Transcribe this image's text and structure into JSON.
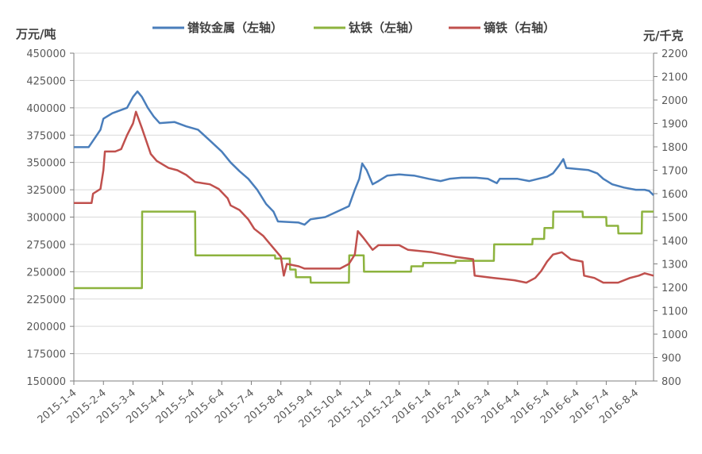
{
  "chart_data": {
    "type": "line",
    "left_unit": "万元/吨",
    "right_unit": "元/千克",
    "left_axis": {
      "min": 150000,
      "max": 450000,
      "step": 25000,
      "ticks": [
        "450000",
        "425000",
        "400000",
        "375000",
        "350000",
        "325000",
        "300000",
        "275000",
        "250000",
        "225000",
        "200000",
        "175000",
        "150000"
      ]
    },
    "right_axis": {
      "min": 800,
      "max": 2200,
      "step": 100,
      "ticks": [
        "2200",
        "2100",
        "2000",
        "1900",
        "1800",
        "1700",
        "1600",
        "1500",
        "1400",
        "1300",
        "1200",
        "1100",
        "1000",
        "900",
        "800"
      ]
    },
    "x_ticks": [
      "2015-1-4",
      "2015-2-4",
      "2015-3-4",
      "2015-4-4",
      "2015-5-4",
      "2015-6-4",
      "2015-7-4",
      "2015-8-4",
      "2015-9-4",
      "2015-10-4",
      "2015-11-4",
      "2015-12-4",
      "2016-1-4",
      "2016-2-4",
      "2016-3-4",
      "2016-4-4",
      "2016-5-4",
      "2016-6-4",
      "2016-7-4",
      "2016-8-4"
    ],
    "x_range": [
      0,
      19.6
    ],
    "grid": true,
    "legend_position": "top",
    "series": [
      {
        "name": "镨钕金属（左轴）",
        "axis": "left",
        "color": "#4a7ebb",
        "points": [
          [
            0,
            364000
          ],
          [
            0.5,
            364000
          ],
          [
            0.7,
            372000
          ],
          [
            0.9,
            380000
          ],
          [
            1.0,
            390000
          ],
          [
            1.3,
            395000
          ],
          [
            1.8,
            400000
          ],
          [
            2.0,
            410000
          ],
          [
            2.15,
            415000
          ],
          [
            2.3,
            410000
          ],
          [
            2.5,
            400000
          ],
          [
            2.7,
            392000
          ],
          [
            2.9,
            386000
          ],
          [
            3.4,
            387000
          ],
          [
            3.8,
            383000
          ],
          [
            4.2,
            380000
          ],
          [
            4.6,
            370000
          ],
          [
            5.0,
            360000
          ],
          [
            5.3,
            350000
          ],
          [
            5.6,
            342000
          ],
          [
            5.9,
            335000
          ],
          [
            6.2,
            325000
          ],
          [
            6.5,
            312000
          ],
          [
            6.75,
            305000
          ],
          [
            6.9,
            296000
          ],
          [
            7.6,
            295000
          ],
          [
            7.8,
            293000
          ],
          [
            8.0,
            298000
          ],
          [
            8.5,
            300000
          ],
          [
            8.9,
            305000
          ],
          [
            9.3,
            310000
          ],
          [
            9.5,
            325000
          ],
          [
            9.65,
            335000
          ],
          [
            9.75,
            349000
          ],
          [
            9.9,
            343000
          ],
          [
            10.1,
            330000
          ],
          [
            10.3,
            333000
          ],
          [
            10.6,
            338000
          ],
          [
            11.0,
            339000
          ],
          [
            11.5,
            338000
          ],
          [
            12.0,
            335000
          ],
          [
            12.4,
            333000
          ],
          [
            12.7,
            335000
          ],
          [
            13.1,
            336000
          ],
          [
            13.6,
            336000
          ],
          [
            14.0,
            335000
          ],
          [
            14.3,
            331000
          ],
          [
            14.4,
            335000
          ],
          [
            15.0,
            335000
          ],
          [
            15.4,
            333000
          ],
          [
            15.7,
            335000
          ],
          [
            16.0,
            337000
          ],
          [
            16.2,
            340000
          ],
          [
            16.4,
            347000
          ],
          [
            16.55,
            353000
          ],
          [
            16.65,
            345000
          ],
          [
            17.0,
            344000
          ],
          [
            17.4,
            343000
          ],
          [
            17.7,
            340000
          ],
          [
            17.9,
            335000
          ],
          [
            18.2,
            330000
          ],
          [
            18.6,
            327000
          ],
          [
            19.0,
            325000
          ],
          [
            19.3,
            325000
          ],
          [
            19.45,
            324000
          ],
          [
            19.6,
            320000
          ]
        ]
      },
      {
        "name": "钛铁（左轴）",
        "axis": "left",
        "color": "#8db33e",
        "points": [
          [
            0,
            235000
          ],
          [
            2.3,
            235000
          ],
          [
            2.31,
            305000
          ],
          [
            4.1,
            305000
          ],
          [
            4.11,
            265000
          ],
          [
            6.8,
            265000
          ],
          [
            6.81,
            262000
          ],
          [
            7.3,
            262000
          ],
          [
            7.31,
            252000
          ],
          [
            7.5,
            252000
          ],
          [
            7.51,
            245000
          ],
          [
            8.0,
            245000
          ],
          [
            8.01,
            240000
          ],
          [
            9.3,
            240000
          ],
          [
            9.31,
            265000
          ],
          [
            9.8,
            265000
          ],
          [
            9.81,
            250000
          ],
          [
            11.4,
            250000
          ],
          [
            11.41,
            255000
          ],
          [
            11.8,
            255000
          ],
          [
            11.81,
            258000
          ],
          [
            12.9,
            258000
          ],
          [
            12.91,
            260000
          ],
          [
            14.2,
            260000
          ],
          [
            14.21,
            275000
          ],
          [
            15.5,
            275000
          ],
          [
            15.51,
            280000
          ],
          [
            15.9,
            280000
          ],
          [
            15.91,
            290000
          ],
          [
            16.2,
            290000
          ],
          [
            16.21,
            305000
          ],
          [
            17.2,
            305000
          ],
          [
            17.21,
            300000
          ],
          [
            18.0,
            300000
          ],
          [
            18.01,
            292000
          ],
          [
            18.4,
            292000
          ],
          [
            18.41,
            285000
          ],
          [
            19.2,
            285000
          ],
          [
            19.21,
            305000
          ],
          [
            19.6,
            305000
          ]
        ]
      },
      {
        "name": "镝铁（右轴）",
        "axis": "right",
        "color": "#c0504d",
        "points": [
          [
            0,
            1560
          ],
          [
            0.6,
            1560
          ],
          [
            0.65,
            1600
          ],
          [
            0.9,
            1620
          ],
          [
            1.0,
            1700
          ],
          [
            1.05,
            1780
          ],
          [
            1.4,
            1780
          ],
          [
            1.6,
            1790
          ],
          [
            1.8,
            1850
          ],
          [
            2.0,
            1900
          ],
          [
            2.1,
            1950
          ],
          [
            2.3,
            1880
          ],
          [
            2.6,
            1770
          ],
          [
            2.8,
            1740
          ],
          [
            3.2,
            1710
          ],
          [
            3.5,
            1700
          ],
          [
            3.8,
            1680
          ],
          [
            4.1,
            1650
          ],
          [
            4.6,
            1640
          ],
          [
            4.9,
            1620
          ],
          [
            5.2,
            1580
          ],
          [
            5.3,
            1550
          ],
          [
            5.6,
            1530
          ],
          [
            5.9,
            1490
          ],
          [
            6.1,
            1450
          ],
          [
            6.4,
            1420
          ],
          [
            6.6,
            1390
          ],
          [
            6.8,
            1360
          ],
          [
            7.0,
            1330
          ],
          [
            7.1,
            1250
          ],
          [
            7.2,
            1300
          ],
          [
            7.6,
            1290
          ],
          [
            7.8,
            1280
          ],
          [
            8.5,
            1280
          ],
          [
            9.0,
            1280
          ],
          [
            9.3,
            1300
          ],
          [
            9.5,
            1340
          ],
          [
            9.6,
            1440
          ],
          [
            9.8,
            1410
          ],
          [
            10.1,
            1360
          ],
          [
            10.3,
            1380
          ],
          [
            11.0,
            1380
          ],
          [
            11.3,
            1360
          ],
          [
            12.1,
            1350
          ],
          [
            12.5,
            1340
          ],
          [
            12.9,
            1330
          ],
          [
            13.5,
            1320
          ],
          [
            13.55,
            1250
          ],
          [
            14.2,
            1240
          ],
          [
            14.9,
            1230
          ],
          [
            15.3,
            1220
          ],
          [
            15.6,
            1240
          ],
          [
            15.8,
            1270
          ],
          [
            16.0,
            1310
          ],
          [
            16.2,
            1340
          ],
          [
            16.5,
            1350
          ],
          [
            16.8,
            1320
          ],
          [
            17.2,
            1310
          ],
          [
            17.25,
            1250
          ],
          [
            17.6,
            1240
          ],
          [
            17.9,
            1220
          ],
          [
            18.4,
            1220
          ],
          [
            18.8,
            1240
          ],
          [
            19.1,
            1250
          ],
          [
            19.3,
            1260
          ],
          [
            19.6,
            1250
          ]
        ]
      }
    ]
  }
}
